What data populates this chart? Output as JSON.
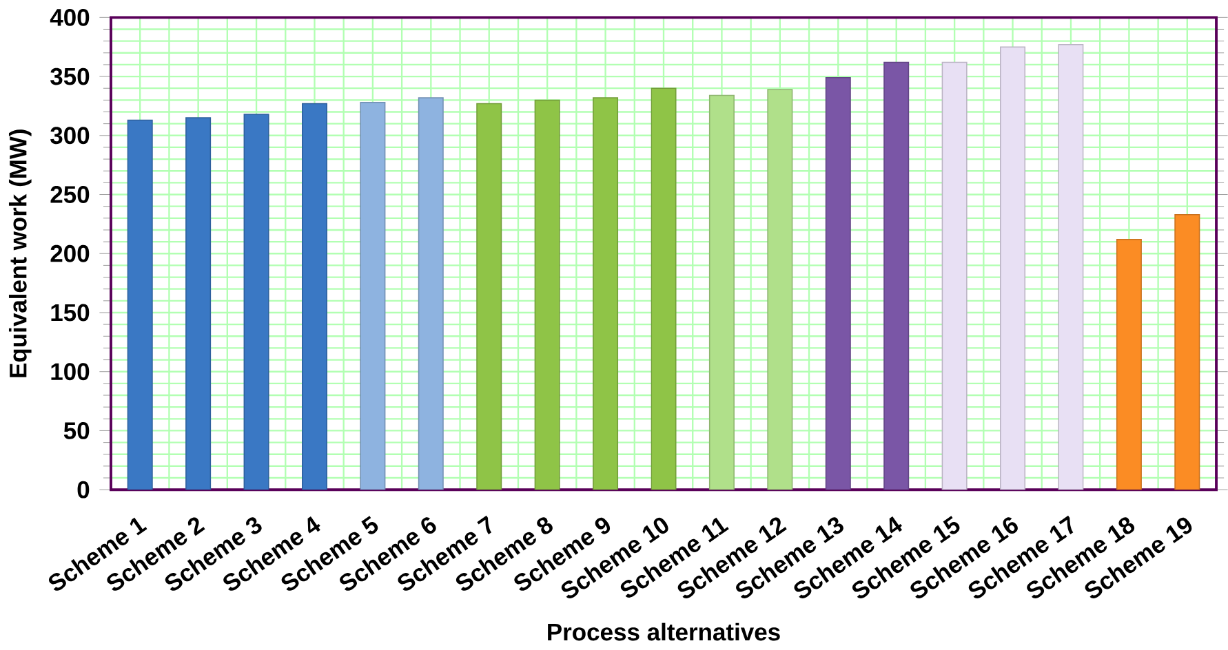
{
  "chart_data": {
    "type": "bar",
    "xlabel": "Process alternatives",
    "ylabel": "Equivalent work (MW)",
    "categories": [
      "Scheme 1",
      "Scheme 2",
      "Scheme 3",
      "Scheme 4",
      "Scheme 5",
      "Scheme 6",
      "Scheme 7",
      "Scheme 8",
      "Scheme 9",
      "Scheme 10",
      "Scheme 11",
      "Scheme 12",
      "Scheme 13",
      "Scheme 14",
      "Scheme 15",
      "Scheme 16",
      "Scheme 17",
      "Scheme 18",
      "Scheme 19"
    ],
    "values": [
      313,
      315,
      318,
      327,
      328,
      332,
      327,
      330,
      332,
      340,
      334,
      339,
      349,
      362,
      362,
      375,
      377,
      212,
      233
    ],
    "colors": [
      "#3a78c4",
      "#3a78c4",
      "#3a78c4",
      "#3a78c4",
      "#8eb3e0",
      "#8eb3e0",
      "#8fc447",
      "#8fc447",
      "#8fc447",
      "#8fc447",
      "#b0e08a",
      "#b0e08a",
      "#7a56a6",
      "#7a56a6",
      "#e8e0f4",
      "#e8e0f4",
      "#e8e0f4",
      "#fb8c24",
      "#fb8c24"
    ],
    "ylim": [
      0,
      400
    ],
    "yticks": [
      0,
      50,
      100,
      150,
      200,
      250,
      300,
      350,
      400
    ],
    "grid": true
  }
}
